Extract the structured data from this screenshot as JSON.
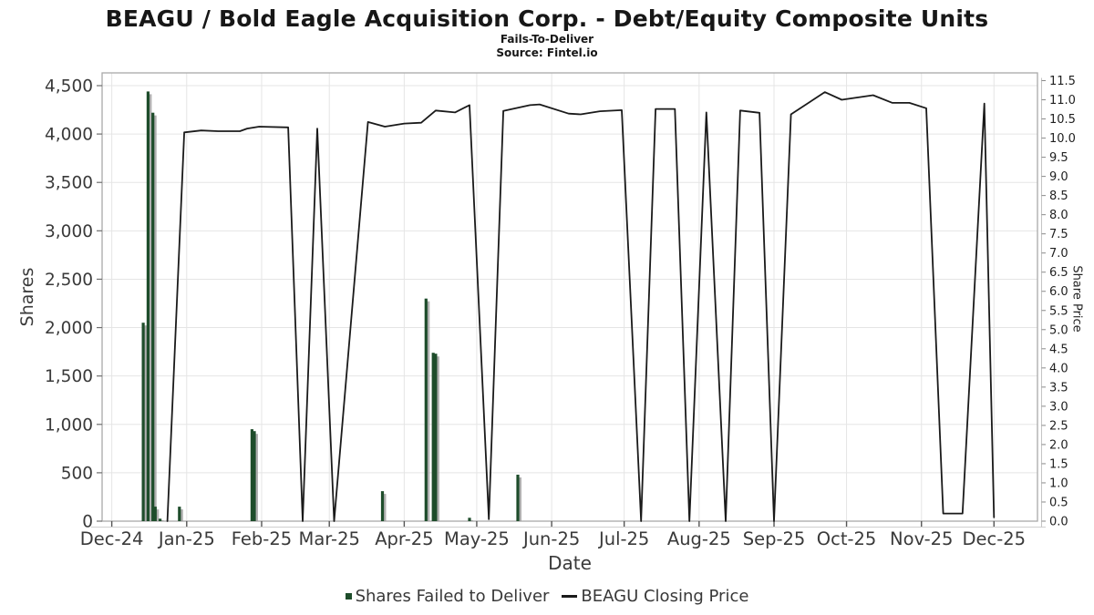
{
  "title": "BEAGU / Bold Eagle Acquisition Corp. - Debt/Equity Composite Units",
  "subtitle": "Fails-To-Deliver",
  "source": "Source: Fintel.io",
  "chart_data": {
    "type": "combo",
    "title": "BEAGU / Bold Eagle Acquisition Corp. - Debt/Equity Composite Units",
    "subtitle": "Fails-To-Deliver",
    "source": "Source: Fintel.io",
    "grid": true,
    "legend_position": "bottom",
    "x_axis": {
      "label": "Date",
      "domain": [
        -4,
        383
      ],
      "ticks": [
        {
          "day": 0,
          "label": "Dec-24"
        },
        {
          "day": 31,
          "label": "Jan-25"
        },
        {
          "day": 62,
          "label": "Feb-25"
        },
        {
          "day": 90,
          "label": "Mar-25"
        },
        {
          "day": 121,
          "label": "Apr-25"
        },
        {
          "day": 151,
          "label": "May-25"
        },
        {
          "day": 182,
          "label": "Jun-25"
        },
        {
          "day": 212,
          "label": "Jul-25"
        },
        {
          "day": 243,
          "label": "Aug-25"
        },
        {
          "day": 274,
          "label": "Sep-25"
        },
        {
          "day": 304,
          "label": "Oct-25"
        },
        {
          "day": 335,
          "label": "Nov-25"
        },
        {
          "day": 365,
          "label": "Dec-25"
        }
      ]
    },
    "y_left": {
      "label": "Shares",
      "min": 0,
      "max": 4500,
      "step": 500
    },
    "y_right": {
      "label": "Share Price",
      "min": 0,
      "max": 11.5,
      "step": 0.5
    },
    "series": [
      {
        "name": "Shares Failed to Deliver",
        "type": "bar",
        "axis": "left",
        "color": "#1e4d2b",
        "shadow_color": "#9c9c9c",
        "points": [
          [
            13,
            2050
          ],
          [
            15,
            4440
          ],
          [
            17,
            4220
          ],
          [
            18,
            150
          ],
          [
            20,
            25
          ],
          [
            28,
            150
          ],
          [
            58,
            950
          ],
          [
            59,
            930
          ],
          [
            112,
            310
          ],
          [
            130,
            2300
          ],
          [
            133,
            1740
          ],
          [
            134,
            1730
          ],
          [
            148,
            35
          ],
          [
            168,
            480
          ]
        ]
      },
      {
        "name": "BEAGU Closing Price",
        "type": "line",
        "axis": "right",
        "color": "#1a1a1a",
        "points": [
          [
            23,
            0
          ],
          [
            30,
            10.15
          ],
          [
            37,
            10.2
          ],
          [
            44,
            10.18
          ],
          [
            53,
            10.18
          ],
          [
            56,
            10.25
          ],
          [
            61,
            10.3
          ],
          [
            73,
            10.28
          ],
          [
            79,
            0
          ],
          [
            85,
            10.25
          ],
          [
            92,
            0
          ],
          [
            106,
            10.42
          ],
          [
            113,
            10.3
          ],
          [
            121,
            10.38
          ],
          [
            128,
            10.4
          ],
          [
            134,
            10.72
          ],
          [
            142,
            10.67
          ],
          [
            148,
            10.86
          ],
          [
            156,
            0.05
          ],
          [
            162,
            10.71
          ],
          [
            173,
            10.86
          ],
          [
            177,
            10.88
          ],
          [
            189,
            10.64
          ],
          [
            194,
            10.62
          ],
          [
            202,
            10.7
          ],
          [
            211,
            10.73
          ],
          [
            219,
            0
          ],
          [
            225,
            10.76
          ],
          [
            233,
            10.76
          ],
          [
            239,
            0
          ],
          [
            246,
            10.67
          ],
          [
            254,
            0
          ],
          [
            260,
            10.72
          ],
          [
            268,
            10.66
          ],
          [
            274,
            0
          ],
          [
            281,
            10.62
          ],
          [
            295,
            11.2
          ],
          [
            302,
            11.0
          ],
          [
            315,
            11.12
          ],
          [
            323,
            10.92
          ],
          [
            330,
            10.92
          ],
          [
            337,
            10.78
          ],
          [
            344,
            0.2
          ],
          [
            352,
            0.2
          ],
          [
            361,
            10.9
          ],
          [
            365,
            0.1
          ]
        ]
      }
    ]
  }
}
